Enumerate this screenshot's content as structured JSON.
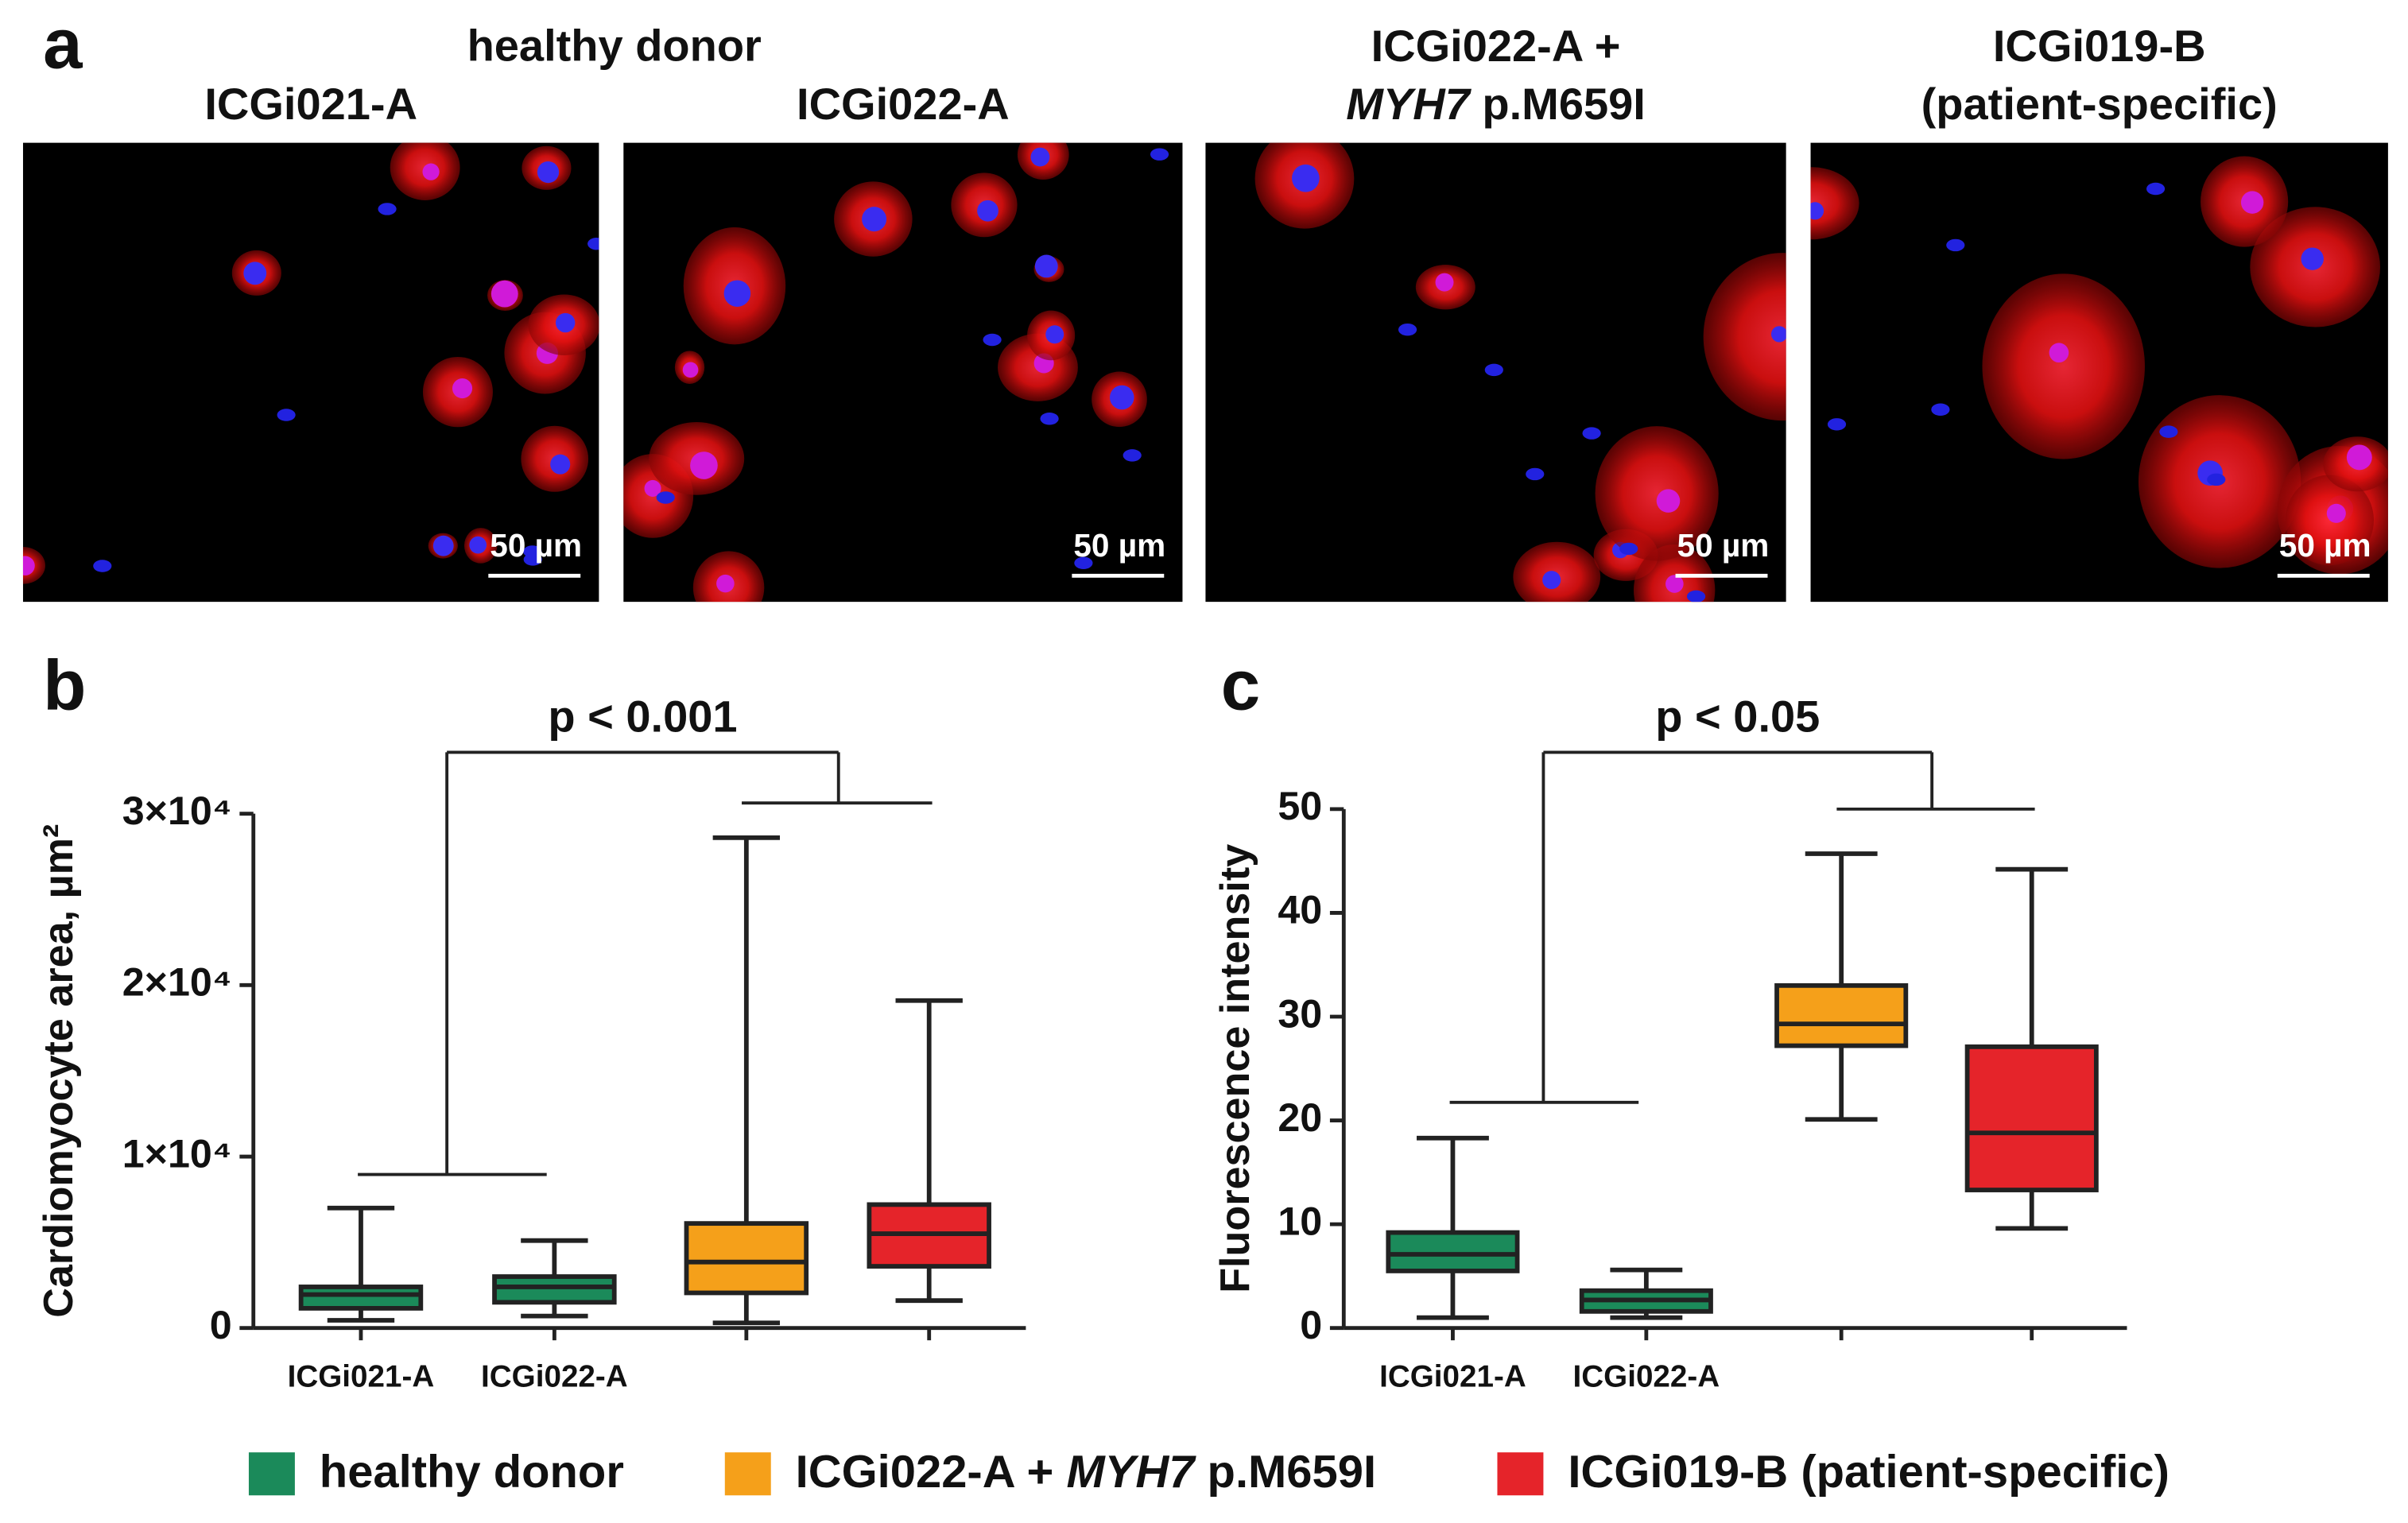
{
  "figure": {
    "panel_letters": [
      "a",
      "b",
      "c"
    ],
    "group_title": "healthy donor",
    "micrographs": [
      {
        "title": [
          [
            {
              "text": "ICGi021-A"
            }
          ]
        ],
        "scale_bar": "50 µm"
      },
      {
        "title": [
          [
            {
              "text": "ICGi022-A"
            }
          ]
        ],
        "scale_bar": "50 µm"
      },
      {
        "title": [
          [
            {
              "text": "ICGi022-A +"
            }
          ],
          [
            {
              "text": "MYH7",
              "italic": true
            },
            {
              "text": " p.M659I"
            }
          ]
        ],
        "scale_bar": "50 µm"
      },
      {
        "title": [
          [
            {
              "text": "ICGi019-B"
            }
          ],
          [
            {
              "text": "(patient-specific)"
            }
          ]
        ],
        "scale_bar": "50 µm"
      }
    ],
    "legend": [
      {
        "label": [
          {
            "text": "healthy donor"
          }
        ],
        "color": "#1b8a5a"
      },
      {
        "label": [
          {
            "text": "ICGi022-A + "
          },
          {
            "text": "MYH7",
            "italic": true
          },
          {
            "text": " p.M659I"
          }
        ],
        "color": "#f5a01a"
      },
      {
        "label": [
          {
            "text": "ICGi019-B (patient-specific)"
          }
        ],
        "color": "#e5242a"
      }
    ]
  },
  "chart_data": [
    {
      "type": "box",
      "ylabel": "Cardiomyocyte area, µm²",
      "annotation": "p < 0.001",
      "categories": [
        "ICGi021-A",
        "ICGi022-A",
        null,
        null
      ],
      "ylim": [
        0,
        30000
      ],
      "yticks": [
        0,
        {
          "value": 10000,
          "label": "1×10⁴"
        },
        {
          "value": 20000,
          "label": "2×10⁴"
        },
        {
          "value": 30000,
          "label": "3×10⁴"
        }
      ],
      "boxes": [
        {
          "color": "#1b8a5a",
          "min": 450,
          "q1": 1150,
          "median": 1950,
          "q3": 2400,
          "max": 7000
        },
        {
          "color": "#1b8a5a",
          "min": 700,
          "q1": 1500,
          "median": 2400,
          "q3": 3000,
          "max": 5100
        },
        {
          "color": "#f5a01a",
          "min": 300,
          "q1": 2050,
          "median": 3850,
          "q3": 6100,
          "max": 28600
        },
        {
          "color": "#e5242a",
          "min": 1600,
          "q1": 3600,
          "median": 5500,
          "q3": 7200,
          "max": 19100
        }
      ]
    },
    {
      "type": "box",
      "ylabel": "Fluorescence intensity",
      "annotation": "p < 0.05",
      "categories": [
        "ICGi021-A",
        "ICGi022-A",
        null,
        null
      ],
      "ylim": [
        0,
        50
      ],
      "yticks": [
        0,
        10,
        20,
        30,
        40,
        50
      ],
      "boxes": [
        {
          "color": "#1b8a5a",
          "min": 1,
          "q1": 5.5,
          "median": 7.1,
          "q3": 9.2,
          "max": 18.3
        },
        {
          "color": "#1b8a5a",
          "min": 1,
          "q1": 1.6,
          "median": 2.7,
          "q3": 3.6,
          "max": 5.6
        },
        {
          "color": "#f5a01a",
          "min": 20.1,
          "q1": 27.2,
          "median": 29.3,
          "q3": 33,
          "max": 45.7
        },
        {
          "color": "#e5242a",
          "min": 9.6,
          "q1": 13.3,
          "median": 18.8,
          "q3": 27.1,
          "max": 44.2
        }
      ]
    }
  ]
}
